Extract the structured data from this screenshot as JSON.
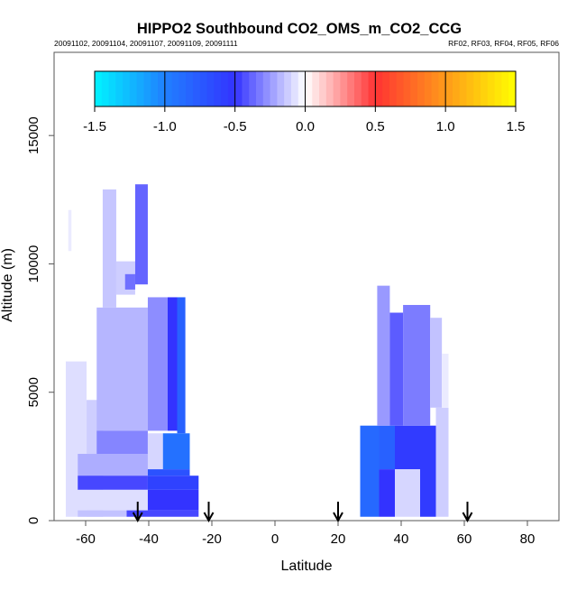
{
  "chart_data": {
    "type": "heatmap",
    "title": "HIPPO2 Southbound CO2_OMS_m_CO2_CCG",
    "subtitle_left": "20091102, 20091104, 20091107, 20091109, 20091111",
    "subtitle_right": "RF02, RF03, RF04, RF05, RF06",
    "xlabel": "Latitude",
    "ylabel": "Altitude (m)",
    "xlim": [
      -70,
      90
    ],
    "ylim": [
      0,
      18240
    ],
    "xticks": [
      -60,
      -40,
      -20,
      0,
      20,
      40,
      60,
      80
    ],
    "xtick_labels": [
      "-60",
      "-40",
      "-20",
      "0",
      "20",
      "40",
      "60",
      "80"
    ],
    "yticks": [
      0,
      5000,
      10000,
      15000
    ],
    "ytick_labels": [
      "0",
      "5000",
      "10000",
      "15000"
    ],
    "colorbar": {
      "range": [
        -1.5,
        1.5
      ],
      "ticks": [
        "-1.5",
        "-1.0",
        "-0.5",
        "0.0",
        "0.5",
        "1.0",
        "1.5"
      ],
      "stops": [
        {
          "v": -1.5,
          "c": "#00f4ff"
        },
        {
          "v": -1.0,
          "c": "#2080ff"
        },
        {
          "v": -0.5,
          "c": "#3333ff"
        },
        {
          "v": 0.0,
          "c": "#ffffff"
        },
        {
          "v": 0.5,
          "c": "#ff3333"
        },
        {
          "v": 1.0,
          "c": "#ff9a1a"
        },
        {
          "v": 1.5,
          "c": "#ffff00"
        }
      ]
    },
    "arrows_latitude": [
      -43.5,
      -21,
      20,
      61
    ],
    "cells": [
      {
        "lat": [
          -66.3,
          -59.7
        ],
        "alt": [
          150,
          6200
        ],
        "v": -0.08
      },
      {
        "lat": [
          -59.7,
          -54.5
        ],
        "alt": [
          150,
          4700
        ],
        "v": -0.12
      },
      {
        "lat": [
          -65.5,
          -64.5
        ],
        "alt": [
          10500,
          12100
        ],
        "v": -0.05
      },
      {
        "lat": [
          -54.6,
          -50.3
        ],
        "alt": [
          8300,
          12900
        ],
        "v": -0.14
      },
      {
        "lat": [
          -50.3,
          -44.3
        ],
        "alt": [
          8800,
          10100
        ],
        "v": -0.12
      },
      {
        "lat": [
          -47.5,
          -44.3
        ],
        "alt": [
          9000,
          9600
        ],
        "v": -0.35
      },
      {
        "lat": [
          -44.3,
          -40.3
        ],
        "alt": [
          9200,
          13100
        ],
        "v": -0.38
      },
      {
        "lat": [
          -56.5,
          -40.3
        ],
        "alt": [
          3500,
          8300
        ],
        "v": -0.18
      },
      {
        "lat": [
          -40.3,
          -34.0
        ],
        "alt": [
          3500,
          8700
        ],
        "v": -0.28
      },
      {
        "lat": [
          -34.0,
          -31.0
        ],
        "alt": [
          3500,
          8700
        ],
        "v": -0.5
      },
      {
        "lat": [
          -31.0,
          -28.4
        ],
        "alt": [
          3400,
          8700
        ],
        "v": -0.8
      },
      {
        "lat": [
          -56.5,
          -40.3
        ],
        "alt": [
          2600,
          3500
        ],
        "v": -0.3
      },
      {
        "lat": [
          -40.3,
          -35.5
        ],
        "alt": [
          2000,
          3400
        ],
        "v": -0.1
      },
      {
        "lat": [
          -35.5,
          -27.0
        ],
        "alt": [
          2000,
          3400
        ],
        "v": -0.9
      },
      {
        "lat": [
          -62.5,
          -40.3
        ],
        "alt": [
          1750,
          2600
        ],
        "v": -0.2
      },
      {
        "lat": [
          -40.3,
          -27.0
        ],
        "alt": [
          1750,
          2000
        ],
        "v": -0.7
      },
      {
        "lat": [
          -62.5,
          -40.3
        ],
        "alt": [
          1200,
          1750
        ],
        "v": -0.45
      },
      {
        "lat": [
          -40.3,
          -24.2
        ],
        "alt": [
          1200,
          1750
        ],
        "v": -0.6
      },
      {
        "lat": [
          -62.5,
          -40.3
        ],
        "alt": [
          400,
          1200
        ],
        "v": -0.08
      },
      {
        "lat": [
          -40.3,
          -24.2
        ],
        "alt": [
          400,
          1200
        ],
        "v": -0.5
      },
      {
        "lat": [
          -62.5,
          -47.0
        ],
        "alt": [
          150,
          400
        ],
        "v": -0.15
      },
      {
        "lat": [
          -47.0,
          -24.2
        ],
        "alt": [
          150,
          400
        ],
        "v": -0.45
      },
      {
        "lat": [
          27.0,
          33.0
        ],
        "alt": [
          150,
          3700
        ],
        "v": -0.85
      },
      {
        "lat": [
          33.0,
          38.0
        ],
        "alt": [
          2000,
          3700
        ],
        "v": -0.8
      },
      {
        "lat": [
          33.0,
          38.0
        ],
        "alt": [
          150,
          2000
        ],
        "v": -0.5
      },
      {
        "lat": [
          38.0,
          46.0
        ],
        "alt": [
          2000,
          3700
        ],
        "v": -0.55
      },
      {
        "lat": [
          38.0,
          46.0
        ],
        "alt": [
          150,
          2000
        ],
        "v": -0.1
      },
      {
        "lat": [
          46.0,
          51.0
        ],
        "alt": [
          150,
          3700
        ],
        "v": -0.55
      },
      {
        "lat": [
          51.0,
          55.0
        ],
        "alt": [
          150,
          4400
        ],
        "v": -0.12
      },
      {
        "lat": [
          32.4,
          36.4
        ],
        "alt": [
          3700,
          9150
        ],
        "v": -0.25
      },
      {
        "lat": [
          36.4,
          40.6
        ],
        "alt": [
          3700,
          8100
        ],
        "v": -0.4
      },
      {
        "lat": [
          40.6,
          49.2
        ],
        "alt": [
          3700,
          8400
        ],
        "v": -0.32
      },
      {
        "lat": [
          49.2,
          52.9
        ],
        "alt": [
          4400,
          7900
        ],
        "v": -0.15
      },
      {
        "lat": [
          52.9,
          55.0
        ],
        "alt": [
          4400,
          6500
        ],
        "v": -0.05
      }
    ]
  }
}
